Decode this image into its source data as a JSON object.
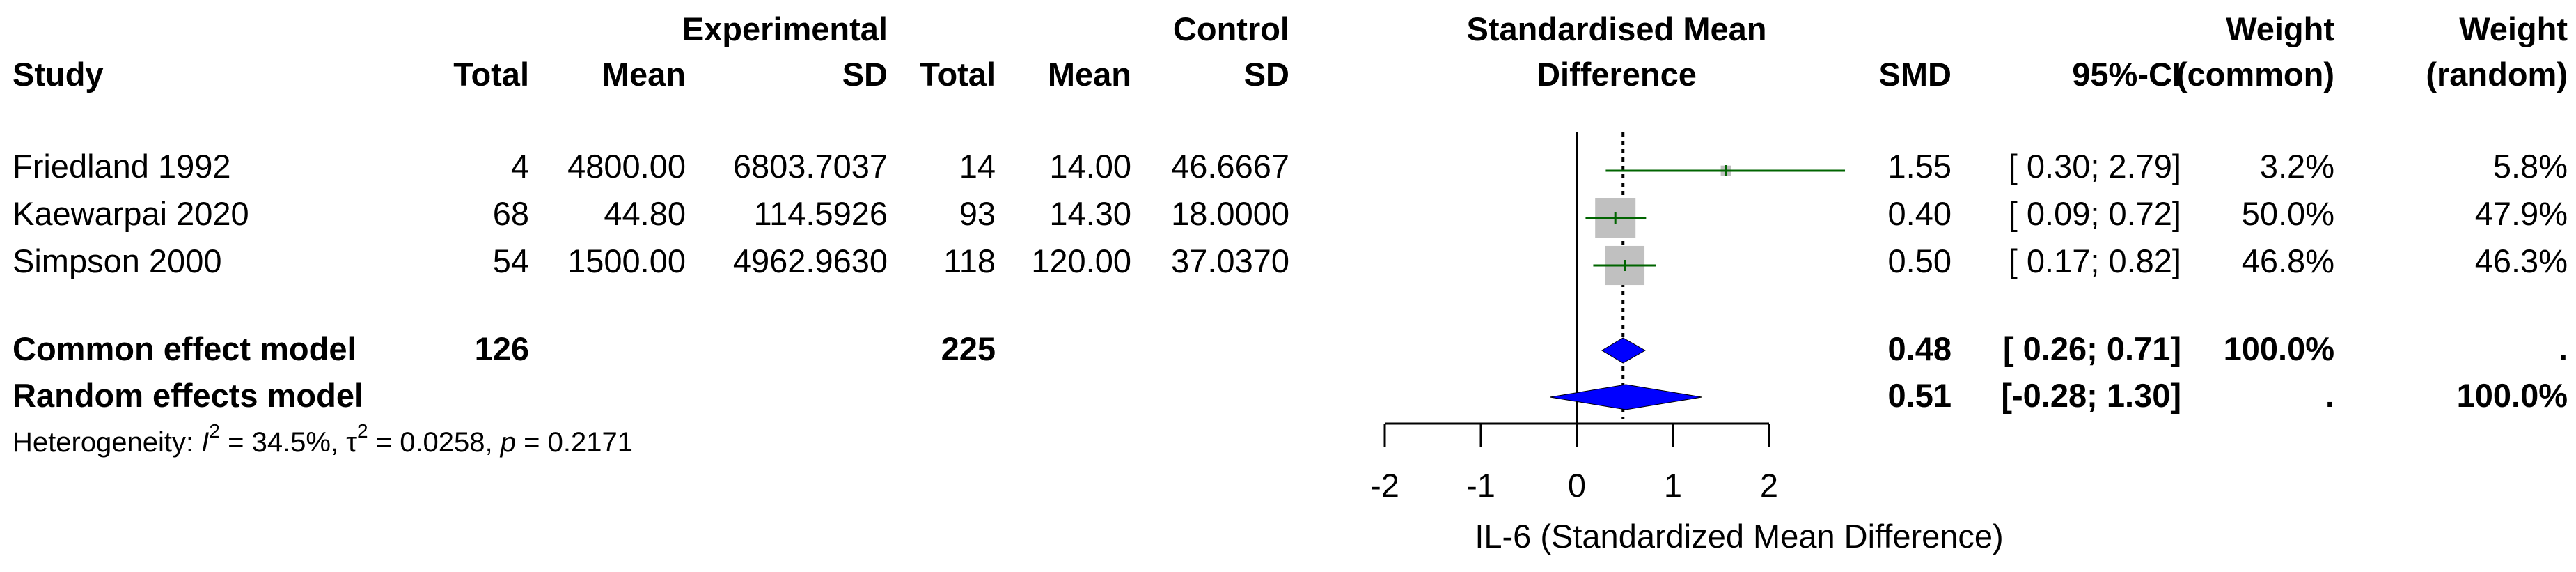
{
  "chart_data": {
    "type": "forest",
    "headers": {
      "study": "Study",
      "group_experimental": "Experimental",
      "group_control": "Control",
      "total": "Total",
      "mean": "Mean",
      "sd": "SD",
      "effect_line1": "Standardised Mean",
      "effect_line2": "Difference",
      "smd": "SMD",
      "ci": "95%-CI",
      "weight": "Weight",
      "common": "(common)",
      "random": "(random)"
    },
    "studies": [
      {
        "name": "Friedland 1992",
        "e_total": "4",
        "e_mean": "4800.00",
        "e_sd": "6803.7037",
        "c_total": "14",
        "c_mean": "14.00",
        "c_sd": "46.6667",
        "smd_text": "1.55",
        "ci_text": "[ 0.30; 2.79]",
        "w_common": "3.2%",
        "w_random": "5.8%",
        "smd": 1.55,
        "lower": 0.3,
        "upper": 2.79,
        "weight": 3.2
      },
      {
        "name": "Kaewarpai 2020",
        "e_total": "68",
        "e_mean": "44.80",
        "e_sd": "114.5926",
        "c_total": "93",
        "c_mean": "14.30",
        "c_sd": "18.0000",
        "smd_text": "0.40",
        "ci_text": "[ 0.09; 0.72]",
        "w_common": "50.0%",
        "w_random": "47.9%",
        "smd": 0.4,
        "lower": 0.09,
        "upper": 0.72,
        "weight": 50.0
      },
      {
        "name": "Simpson 2000",
        "e_total": "54",
        "e_mean": "1500.00",
        "e_sd": "4962.9630",
        "c_total": "118",
        "c_mean": "120.00",
        "c_sd": "37.0370",
        "smd_text": "0.50",
        "ci_text": "[ 0.17; 0.82]",
        "w_common": "46.8%",
        "w_random": "46.3%",
        "smd": 0.5,
        "lower": 0.17,
        "upper": 0.82,
        "weight": 46.8
      }
    ],
    "common": {
      "label": "Common effect model",
      "e_total": "126",
      "c_total": "225",
      "smd_text": "0.48",
      "ci_text": "[ 0.26; 0.71]",
      "w_common": "100.0%",
      "w_random": ".",
      "smd": 0.48,
      "lower": 0.26,
      "upper": 0.71
    },
    "random": {
      "label": "Random effects model",
      "smd_text": "0.51",
      "ci_text": "[-0.28; 1.30]",
      "w_common": ".",
      "w_random": "100.0%",
      "smd": 0.51,
      "lower": -0.28,
      "upper": 1.3
    },
    "heterogeneity": {
      "prefix": "Heterogeneity: ",
      "i2_sym": "I",
      "i2_value": " = 34.5%, ",
      "tau_sym": "τ",
      "tau_value": " = 0.0258, ",
      "p_sym": "p",
      "p_value": " = 0.2171"
    },
    "x_axis": {
      "ticks": [
        -2,
        -1,
        0,
        1,
        2
      ],
      "tick_labels": [
        "-2",
        "-1",
        "0",
        "1",
        "2"
      ],
      "label": "IL-6 (Standardized Mean Difference)",
      "xlim": [
        -2,
        2
      ]
    },
    "colors": {
      "study_ci": "#006400",
      "diamond": "#0000ff",
      "weight_box": "#c0c0c0",
      "text": "#000000"
    }
  }
}
